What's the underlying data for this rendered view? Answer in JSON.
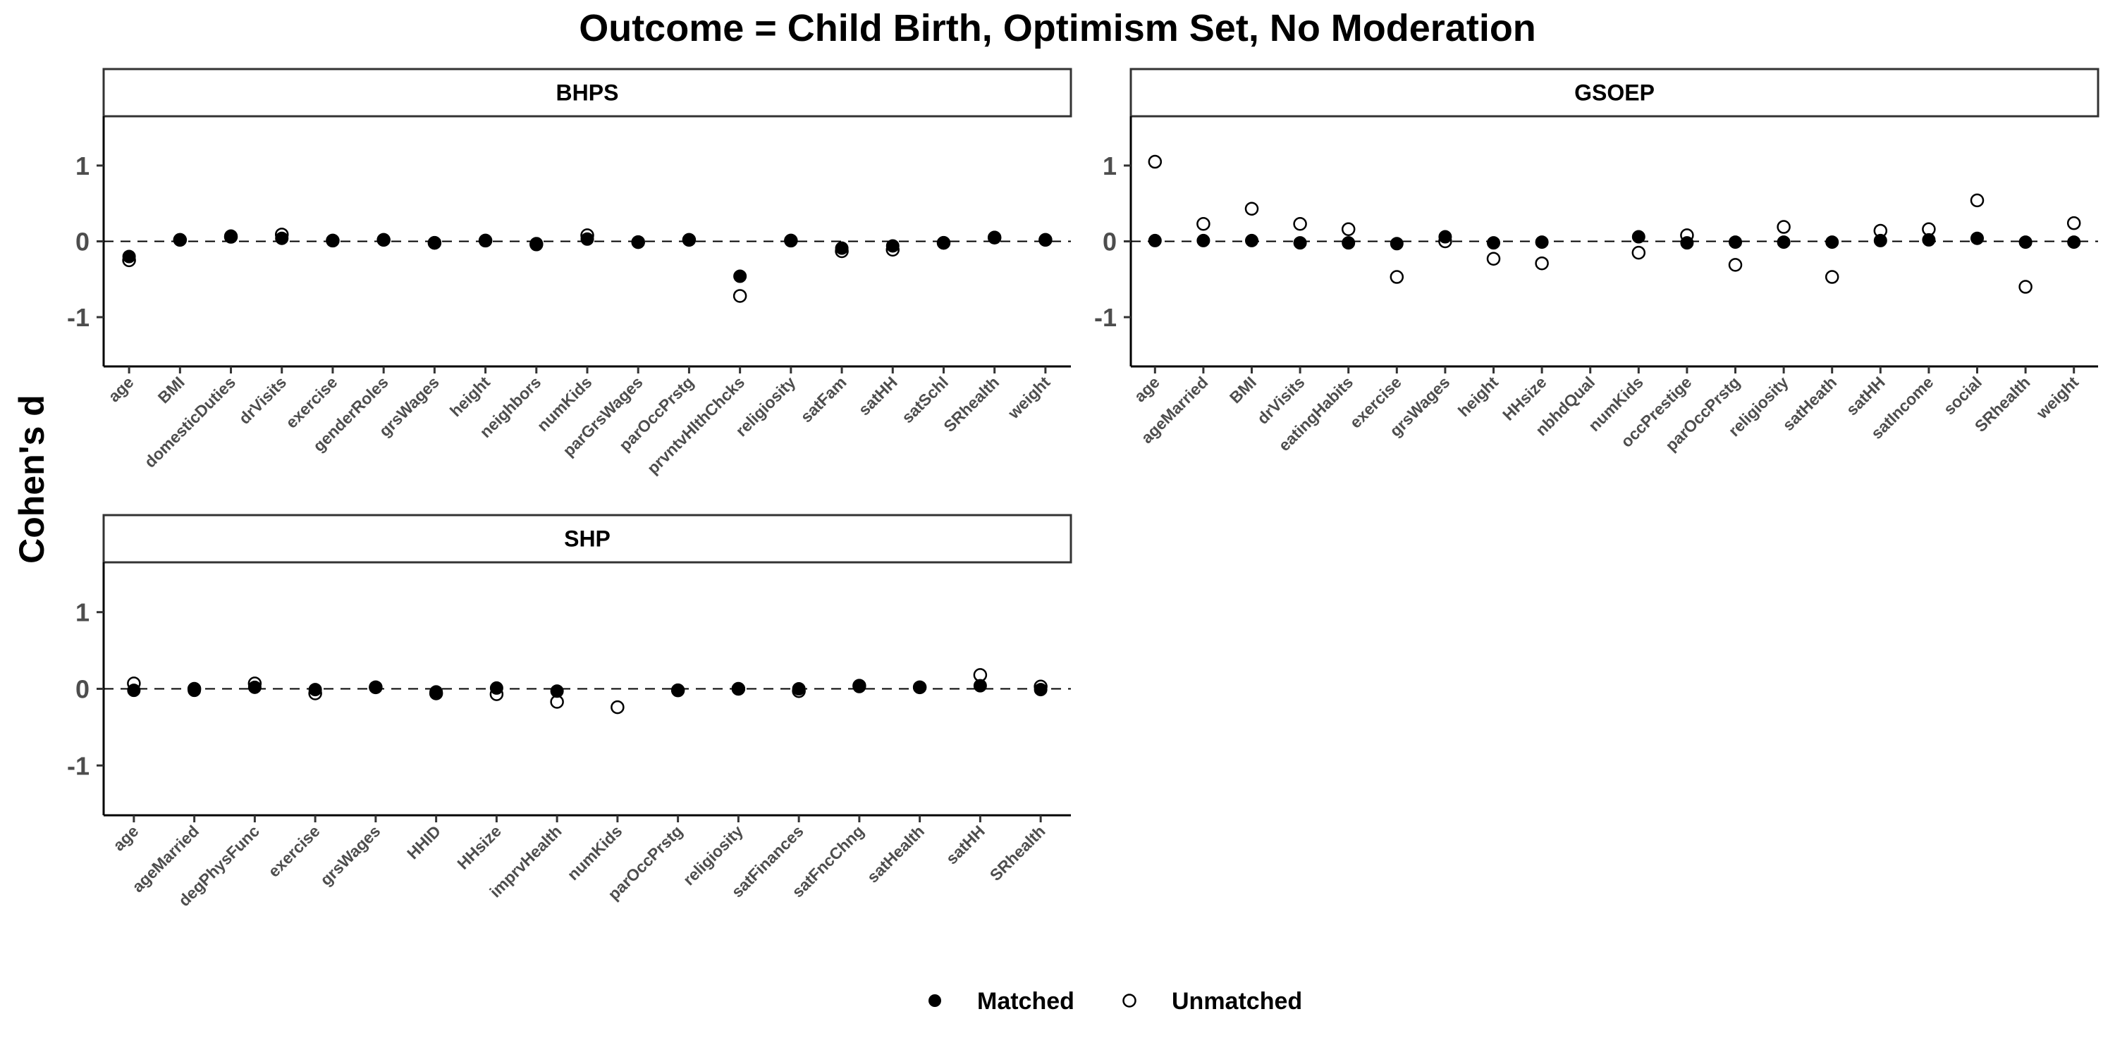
{
  "chart_data": {
    "type": "scatter",
    "title": "Outcome = Child Birth, Optimism Set, No Moderation",
    "ylabel": "Cohen's d",
    "ylim": [
      -1.65,
      1.65
    ],
    "yticks": [
      -1,
      0,
      1
    ],
    "ytick_labels": [
      "-1",
      "0",
      "1"
    ],
    "reference_line": 0,
    "grid": false,
    "legend": {
      "placement": "bottom",
      "entries": [
        {
          "name": "Matched",
          "marker": "filled-circle"
        },
        {
          "name": "Unmatched",
          "marker": "open-circle"
        }
      ]
    },
    "panels": [
      {
        "name": "BHPS",
        "categories": [
          "age",
          "BMI",
          "domesticDuties",
          "drVisits",
          "exercise",
          "genderRoles",
          "grsWages",
          "height",
          "neighbors",
          "numKids",
          "parGrsWages",
          "parOccPrstg",
          "prvntvHlthChcks",
          "religiosity",
          "satFam",
          "satHH",
          "satSchl",
          "SRhealth",
          "weight"
        ],
        "series": [
          {
            "name": "Matched",
            "values": [
              -0.2,
              0.02,
              0.07,
              0.04,
              0.01,
              0.02,
              -0.02,
              0.01,
              -0.03,
              0.03,
              -0.01,
              0.02,
              -0.46,
              0.01,
              -0.09,
              -0.06,
              -0.02,
              0.05,
              0.02
            ]
          },
          {
            "name": "Unmatched",
            "values": [
              -0.25,
              0.02,
              0.06,
              0.09,
              0.01,
              0.02,
              -0.02,
              0.01,
              -0.04,
              0.08,
              -0.01,
              0.02,
              -0.72,
              0.01,
              -0.13,
              -0.11,
              -0.02,
              0.05,
              0.02
            ]
          }
        ]
      },
      {
        "name": "GSOEP",
        "categories": [
          "age",
          "ageMarried",
          "BMI",
          "drVisits",
          "eatingHabits",
          "exercise",
          "grsWages",
          "height",
          "HHsize",
          "nbhdQual",
          "numKids",
          "occPrestige",
          "parOccPrstg",
          "religiosity",
          "satHeath",
          "satHH",
          "satIncome",
          "social",
          "SRhealth",
          "weight"
        ],
        "series": [
          {
            "name": "Matched",
            "values": [
              0.01,
              0.01,
              0.01,
              -0.02,
              -0.02,
              -0.03,
              0.06,
              -0.02,
              -0.01,
              null,
              0.06,
              -0.02,
              -0.01,
              -0.01,
              -0.01,
              0.01,
              0.02,
              0.04,
              -0.01,
              -0.01
            ]
          },
          {
            "name": "Unmatched",
            "values": [
              1.05,
              0.23,
              0.43,
              0.23,
              0.16,
              -0.47,
              0.0,
              -0.23,
              -0.29,
              null,
              -0.15,
              0.08,
              -0.31,
              0.19,
              -0.47,
              0.14,
              0.16,
              0.54,
              -0.6,
              0.24
            ]
          }
        ]
      },
      {
        "name": "SHP",
        "categories": [
          "age",
          "ageMarried",
          "degPhysFunc",
          "exercise",
          "grsWages",
          "HHID",
          "HHsize",
          "imprvHealth",
          "numKids",
          "parOccPrstg",
          "religiosity",
          "satFinances",
          "satFncChng",
          "satHealth",
          "satHH",
          "SRhealth"
        ],
        "series": [
          {
            "name": "Matched",
            "values": [
              -0.02,
              -0.02,
              0.02,
              -0.01,
              0.02,
              -0.04,
              0.01,
              -0.03,
              null,
              -0.02,
              0.0,
              0.0,
              0.03,
              0.02,
              0.04,
              -0.01
            ]
          },
          {
            "name": "Unmatched",
            "values": [
              0.07,
              0.0,
              0.07,
              -0.06,
              0.02,
              -0.06,
              -0.07,
              -0.17,
              -0.24,
              -0.02,
              0.0,
              -0.03,
              0.04,
              0.02,
              0.18,
              0.03
            ]
          }
        ]
      }
    ]
  }
}
